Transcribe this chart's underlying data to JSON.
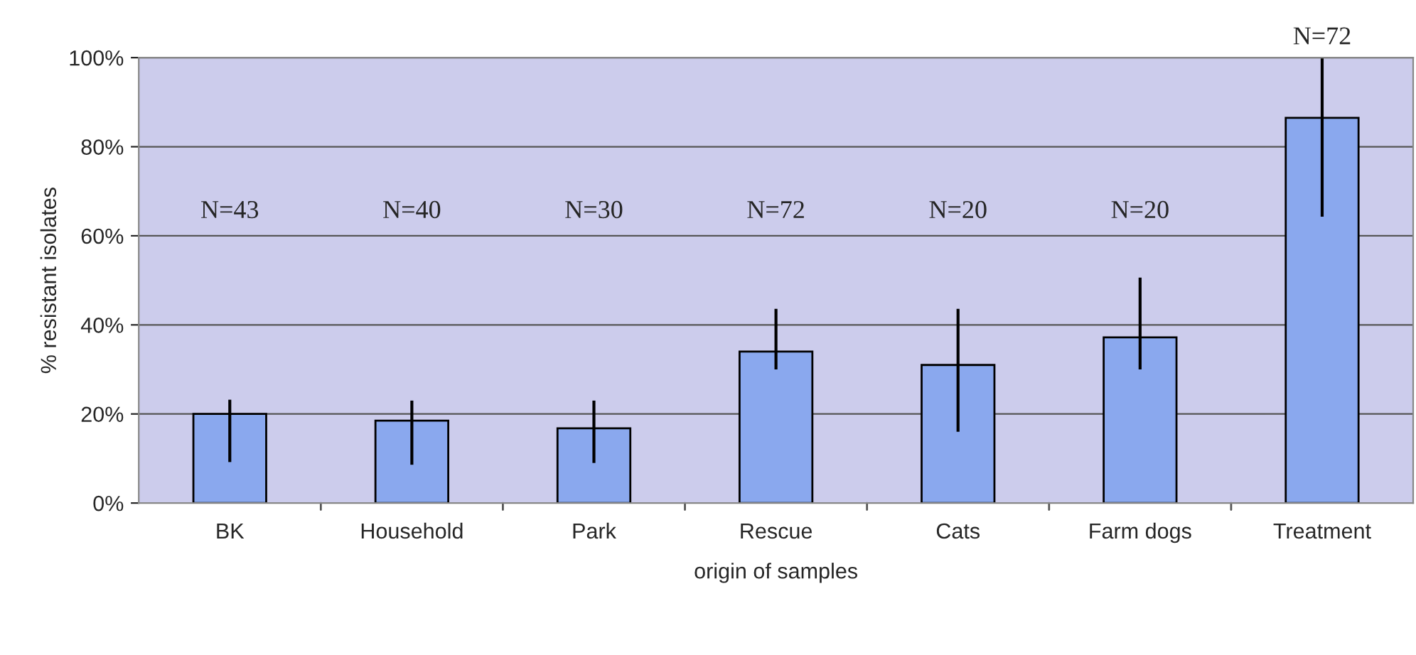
{
  "chart_data": {
    "type": "bar",
    "xlabel": "origin of samples",
    "ylabel": "% resistant isolates",
    "categories": [
      "BK",
      "Household",
      "Park",
      "Rescue",
      "Cats",
      "Farm dogs",
      "Treatment"
    ],
    "values": [
      20,
      18.5,
      16.8,
      34,
      31,
      37.2,
      86.5
    ],
    "errors": [
      [
        9.2,
        23.2
      ],
      [
        8.6,
        23
      ],
      [
        9,
        23
      ],
      [
        30,
        43.6
      ],
      [
        16,
        43.6
      ],
      [
        30,
        50.6
      ],
      [
        64.3,
        100
      ]
    ],
    "annotations": [
      "N=43",
      "N=40",
      "N=30",
      "N=72",
      "N=20",
      "N=20",
      "N=72"
    ],
    "color": "#8aa8ee",
    "ylim": [
      0,
      100
    ],
    "yticks": [
      {
        "value": 0,
        "label": "0%"
      },
      {
        "value": 20,
        "label": "20%"
      },
      {
        "value": 40,
        "label": "40%"
      },
      {
        "value": 60,
        "label": "60%"
      },
      {
        "value": 80,
        "label": "80%"
      },
      {
        "value": 100,
        "label": "100%"
      }
    ],
    "grid": "y",
    "legend": false
  }
}
